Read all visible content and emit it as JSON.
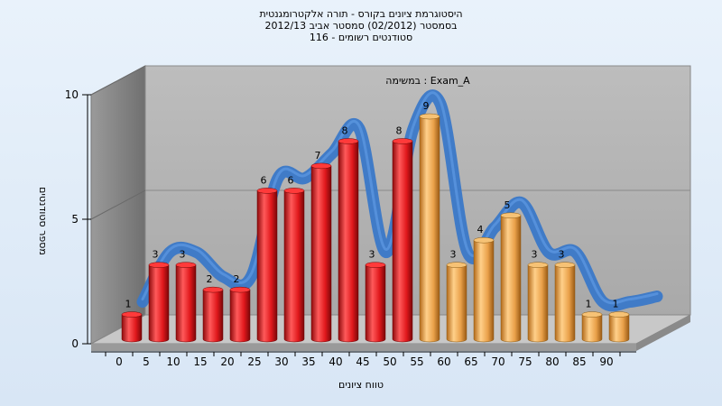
{
  "titles": [
    "היסטוגרמת ציונים בקורס - תורה אלקטרומגנטית",
    "בסמסטר  (02/2012)  סמסטר אביב 2012/13",
    "סטודנטים רשומים - 116"
  ],
  "chart_data": {
    "type": "bar",
    "title": "היסטוגרמת ציונים בקורס - תורה אלקטרומגנטית",
    "exam_label": "במשימה : Exam_A",
    "xlabel": "טווח ציונים",
    "ylabel": "מספר סטודנטים",
    "categories": [
      "0",
      "5",
      "10",
      "15",
      "20",
      "25",
      "30",
      "35",
      "40",
      "45",
      "50",
      "55",
      "60",
      "65",
      "70",
      "75",
      "80",
      "85",
      "90"
    ],
    "values": [
      1,
      3,
      3,
      2,
      2,
      6,
      6,
      7,
      8,
      3,
      8,
      9,
      3,
      4,
      5,
      3,
      3,
      1,
      1
    ],
    "ylim": [
      0,
      10
    ],
    "yticks": [
      0,
      5,
      10
    ],
    "grid": true,
    "colors": {
      "fail": "#e0181c",
      "pass": "#f0a848",
      "trend": "#3a78c8"
    }
  }
}
